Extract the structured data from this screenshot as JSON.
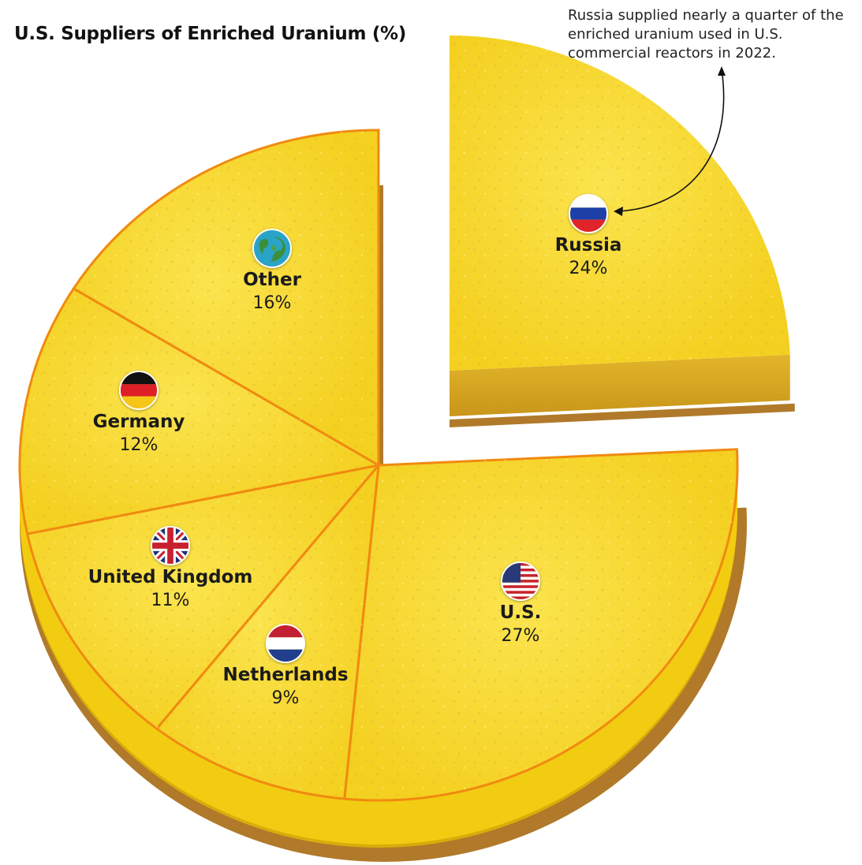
{
  "colors": {
    "cake_top": "#f6d624",
    "cake_top_light": "#fbe552",
    "cake_side": "#f2cc12",
    "cake_side_dark": "#d8ad0a",
    "crust": "#b07a2a",
    "slice_line": "#f08a10",
    "russia_side": "#d9ab22"
  },
  "chart_data": {
    "type": "pie",
    "title": "U.S. Suppliers of Enriched Uranium (%)",
    "annotation": "Russia supplied nearly a quarter of the enriched uranium used in U.S. commercial reactors in 2022.",
    "slices": [
      {
        "label": "Russia",
        "value": 24,
        "display": "24%",
        "flag": "russia-flag-icon"
      },
      {
        "label": "U.S.",
        "value": 27,
        "display": "27%",
        "flag": "usa-flag-icon"
      },
      {
        "label": "Netherlands",
        "value": 9,
        "display": "9%",
        "flag": "netherlands-flag-icon"
      },
      {
        "label": "United Kingdom",
        "value": 11,
        "display": "11%",
        "flag": "uk-flag-icon"
      },
      {
        "label": "Germany",
        "value": 12,
        "display": "12%",
        "flag": "germany-flag-icon"
      },
      {
        "label": "Other",
        "value": 16,
        "display": "16%",
        "flag": "globe-icon"
      }
    ]
  }
}
